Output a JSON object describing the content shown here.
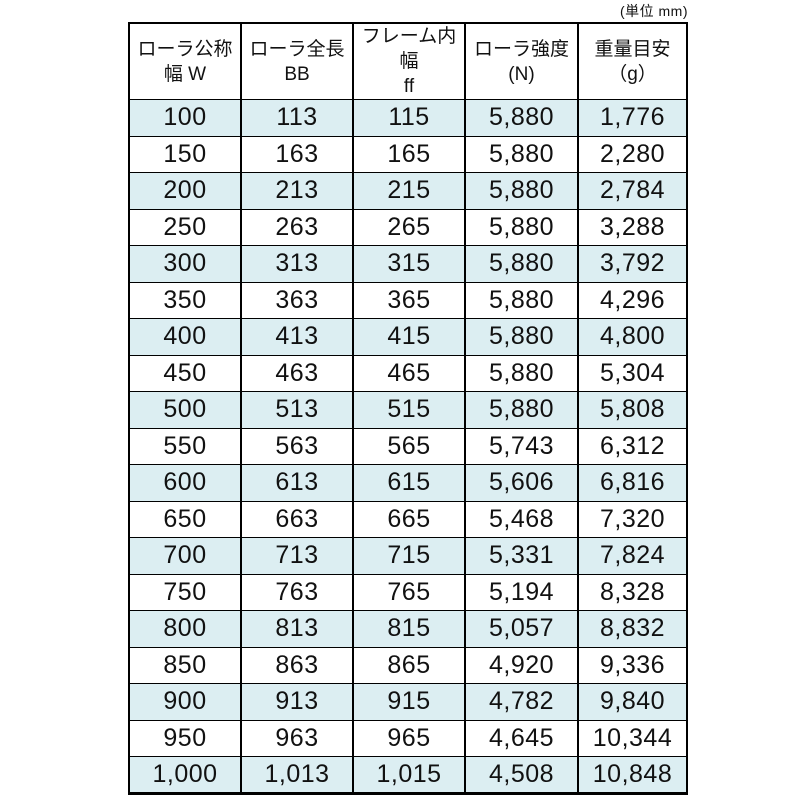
{
  "unit_note": "(単位 mm)",
  "colors": {
    "stripe": "#dceef2",
    "border": "#000000",
    "background": "#ffffff",
    "text": "#111111"
  },
  "table": {
    "headers": [
      [
        "ローラ公称",
        "幅 W"
      ],
      [
        "ローラ全長",
        "BB"
      ],
      [
        "フレーム内幅",
        "ff"
      ],
      [
        "ローラ強度",
        "(N)"
      ],
      [
        "重量目安",
        "（g）"
      ]
    ],
    "rows": [
      [
        "100",
        "113",
        "115",
        "5,880",
        "1,776"
      ],
      [
        "150",
        "163",
        "165",
        "5,880",
        "2,280"
      ],
      [
        "200",
        "213",
        "215",
        "5,880",
        "2,784"
      ],
      [
        "250",
        "263",
        "265",
        "5,880",
        "3,288"
      ],
      [
        "300",
        "313",
        "315",
        "5,880",
        "3,792"
      ],
      [
        "350",
        "363",
        "365",
        "5,880",
        "4,296"
      ],
      [
        "400",
        "413",
        "415",
        "5,880",
        "4,800"
      ],
      [
        "450",
        "463",
        "465",
        "5,880",
        "5,304"
      ],
      [
        "500",
        "513",
        "515",
        "5,880",
        "5,808"
      ],
      [
        "550",
        "563",
        "565",
        "5,743",
        "6,312"
      ],
      [
        "600",
        "613",
        "615",
        "5,606",
        "6,816"
      ],
      [
        "650",
        "663",
        "665",
        "5,468",
        "7,320"
      ],
      [
        "700",
        "713",
        "715",
        "5,331",
        "7,824"
      ],
      [
        "750",
        "763",
        "765",
        "5,194",
        "8,328"
      ],
      [
        "800",
        "813",
        "815",
        "5,057",
        "8,832"
      ],
      [
        "850",
        "863",
        "865",
        "4,920",
        "9,336"
      ],
      [
        "900",
        "913",
        "915",
        "4,782",
        "9,840"
      ],
      [
        "950",
        "963",
        "965",
        "4,645",
        "10,344"
      ],
      [
        "1,000",
        "1,013",
        "1,015",
        "4,508",
        "10,848"
      ]
    ]
  },
  "chart_data": {
    "type": "table",
    "title": "",
    "unit_annotation": "(単位 mm)",
    "columns": [
      "ローラ公称幅 W",
      "ローラ全長 BB",
      "フレーム内幅 ff",
      "ローラ強度 (N)",
      "重量目安（g）"
    ],
    "rows": [
      [
        100,
        113,
        115,
        5880,
        1776
      ],
      [
        150,
        163,
        165,
        5880,
        2280
      ],
      [
        200,
        213,
        215,
        5880,
        2784
      ],
      [
        250,
        263,
        265,
        5880,
        3288
      ],
      [
        300,
        313,
        315,
        5880,
        3792
      ],
      [
        350,
        363,
        365,
        5880,
        4296
      ],
      [
        400,
        413,
        415,
        5880,
        4800
      ],
      [
        450,
        463,
        465,
        5880,
        5304
      ],
      [
        500,
        513,
        515,
        5880,
        5808
      ],
      [
        550,
        563,
        565,
        5743,
        6312
      ],
      [
        600,
        613,
        615,
        5606,
        6816
      ],
      [
        650,
        663,
        665,
        5468,
        7320
      ],
      [
        700,
        713,
        715,
        5331,
        7824
      ],
      [
        750,
        763,
        765,
        5194,
        8328
      ],
      [
        800,
        813,
        815,
        5057,
        8832
      ],
      [
        850,
        863,
        865,
        4920,
        9336
      ],
      [
        900,
        913,
        915,
        4782,
        9840
      ],
      [
        950,
        963,
        965,
        4645,
        10344
      ],
      [
        1000,
        1013,
        1015,
        4508,
        10848
      ]
    ],
    "layout_hints": {
      "striped_rows": "odd data rows (1st, 3rd, ...) have light blue background #dceef2",
      "grid": "black grid lines, all cells bordered",
      "alignment": "all cells centered"
    }
  }
}
